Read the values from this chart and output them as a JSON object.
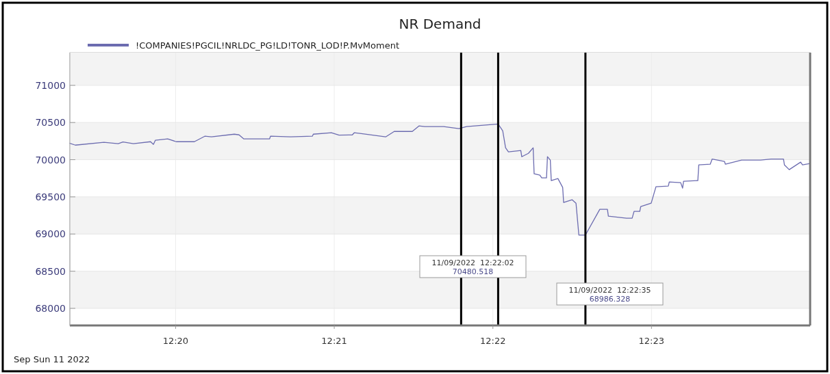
{
  "chart_data": {
    "type": "line",
    "title": "NR Demand",
    "x": [
      12.32222,
      12.3228,
      12.3258,
      12.3273,
      12.3278,
      12.3289,
      12.3307,
      12.331,
      12.3312,
      12.3325,
      12.3334,
      12.3353,
      12.3364,
      12.3371,
      12.3395,
      12.34,
      12.3405,
      12.3418,
      12.3432,
      12.3433,
      12.3454,
      12.3477,
      12.3478,
      12.3497,
      12.3505,
      12.3519,
      12.3521,
      12.3527,
      12.3554,
      12.3563,
      12.3582,
      12.3589,
      12.3595,
      12.3615,
      12.3631,
      12.3639,
      12.36722,
      12.3677,
      12.368,
      12.3683,
      12.3696,
      12.3697,
      12.3704,
      12.3709,
      12.371,
      12.3716,
      12.3718,
      12.3723,
      12.3724,
      12.3727,
      12.3728,
      12.3735,
      12.374,
      12.3741,
      12.375,
      12.3754,
      12.3757,
      12.37639,
      12.3779,
      12.3787,
      12.3788,
      12.3807,
      12.3813,
      12.3815,
      12.3821,
      12.3822,
      12.3833,
      12.3838,
      12.3851,
      12.3852,
      12.3864,
      12.3866,
      12.3867,
      12.3882,
      12.3883,
      12.3895,
      12.3897,
      12.391,
      12.3911,
      12.3928,
      12.3948,
      12.3959,
      12.3972,
      12.3973,
      12.3978,
      12.399,
      12.3992,
      12.4
    ],
    "series": [
      {
        "name": "!COMPANIES!PGCIL!NRLDC_PG!LD!TONR_LOD!P.MvMoment",
        "color": "#6c6cb0",
        "values": [
          70221,
          70196,
          70233,
          70215,
          70238,
          70215,
          70242,
          70206,
          70261,
          70279,
          70242,
          70242,
          70316,
          70307,
          70343,
          70334,
          70279,
          70279,
          70279,
          70316,
          70307,
          70316,
          70343,
          70362,
          70330,
          70334,
          70362,
          70353,
          70307,
          70380,
          70380,
          70454,
          70445,
          70445,
          70417,
          70445,
          70480.518,
          70389,
          70160,
          70105,
          70123,
          70040,
          70086,
          70160,
          69810,
          69792,
          69755,
          69755,
          70040,
          69994,
          69719,
          69746,
          69627,
          69424,
          69461,
          69415,
          68986,
          68986.328,
          69333,
          69333,
          69241,
          69213,
          69213,
          69305,
          69305,
          69369,
          69415,
          69636,
          69645,
          69700,
          69691,
          69617,
          69709,
          69719,
          69930,
          69939,
          70008,
          69976,
          69939,
          69994,
          69994,
          70008,
          70008,
          69930,
          69866,
          69967,
          69930,
          69948
        ]
      }
    ],
    "xlim": [
      12.32222,
      12.4
    ],
    "xticks": [
      {
        "value": 12.33333,
        "label": "12:20"
      },
      {
        "value": 12.35,
        "label": "12:21"
      },
      {
        "value": 12.36667,
        "label": "12:22"
      },
      {
        "value": 12.38333,
        "label": "12:23"
      }
    ],
    "ylim": [
      67770,
      71440
    ],
    "yticks": [
      68000,
      68500,
      69000,
      69500,
      70000,
      70500,
      71000
    ],
    "ref_lines": [
      {
        "axis": "x",
        "value": 12.36333,
        "color": "#000000"
      },
      {
        "axis": "x",
        "value": 12.36722,
        "color": "#000000"
      },
      {
        "axis": "x",
        "value": 12.37639,
        "color": "#000000"
      }
    ],
    "annotations": [
      "11/09/2022  12:22:02\n70480.518",
      "11/09/2022  12:22:35\n68986.328",
      "Sep Sun 11 2022"
    ],
    "grid": true,
    "legend": "top left",
    "marker": "none",
    "line_style": "solid"
  }
}
